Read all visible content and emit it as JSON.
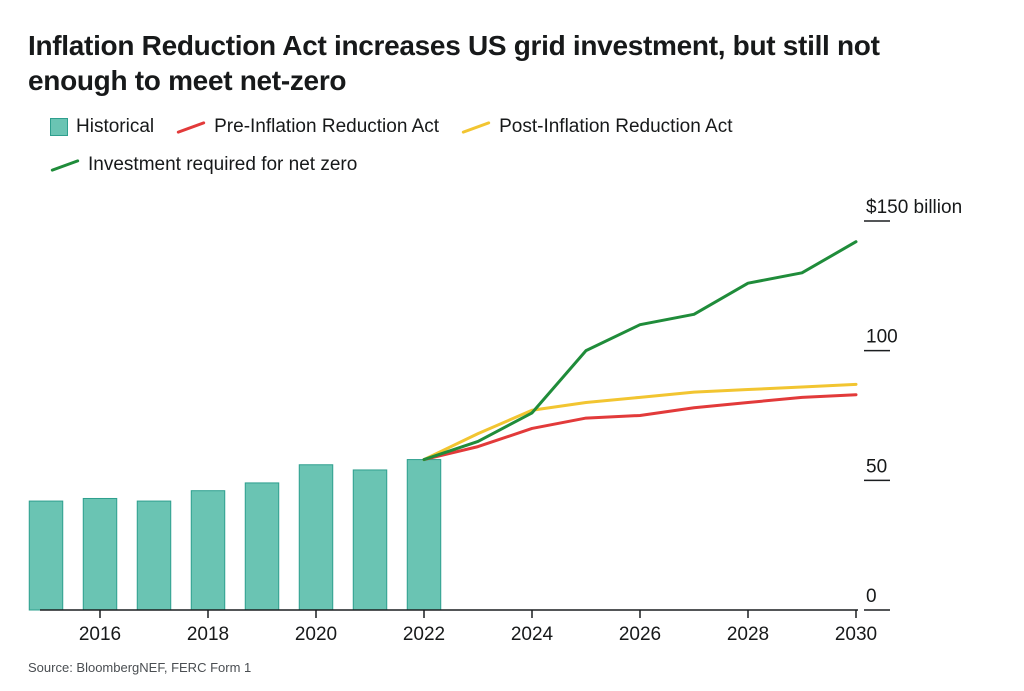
{
  "title": "Inflation Reduction Act increases US grid investment, but still not enough to meet net-zero",
  "source": "Source: BloombergNEF, FERC Form 1",
  "legend": {
    "historical": "Historical",
    "pre_ira": "Pre-Inflation Reduction Act",
    "post_ira": "Post-Inflation Reduction Act",
    "net_zero": "Investment required for net zero"
  },
  "chart": {
    "type": "bar+line",
    "background_color": "#ffffff",
    "text_color": "#17191a",
    "axis_color": "#1b1e20",
    "tick_font_size": 19,
    "y": {
      "unit_label": "$150 billion",
      "ticks": [
        0,
        50,
        100,
        150
      ],
      "tick_labels": [
        "0",
        "50",
        "100",
        "$150 billion"
      ],
      "min": 0,
      "max": 155
    },
    "x": {
      "years": [
        2015,
        2016,
        2017,
        2018,
        2019,
        2020,
        2021,
        2022,
        2023,
        2024,
        2025,
        2026,
        2027,
        2028,
        2029,
        2030
      ],
      "tick_years": [
        2016,
        2018,
        2020,
        2022,
        2024,
        2026,
        2028,
        2030
      ]
    },
    "bars": {
      "years": [
        2015,
        2016,
        2017,
        2018,
        2019,
        2020,
        2021,
        2022
      ],
      "values": [
        42,
        43,
        42,
        46,
        49,
        56,
        54,
        58
      ],
      "fill": "#6ac4b3",
      "stroke": "#2e9f8e",
      "width_ratio": 0.62
    },
    "lines": {
      "pre_ira": {
        "color": "#e23a3a",
        "width": 3,
        "years": [
          2022,
          2023,
          2024,
          2025,
          2026,
          2027,
          2028,
          2029,
          2030
        ],
        "values": [
          58,
          63,
          70,
          74,
          75,
          78,
          80,
          82,
          83
        ]
      },
      "post_ira": {
        "color": "#f2c531",
        "width": 3,
        "years": [
          2022,
          2023,
          2024,
          2025,
          2026,
          2027,
          2028,
          2029,
          2030
        ],
        "values": [
          58,
          68,
          77,
          80,
          82,
          84,
          85,
          86,
          87
        ]
      },
      "net_zero": {
        "color": "#1f8c3a",
        "width": 3,
        "years": [
          2022,
          2023,
          2024,
          2025,
          2026,
          2027,
          2028,
          2029,
          2030
        ],
        "values": [
          58,
          65,
          76,
          100,
          110,
          114,
          126,
          130,
          142
        ]
      }
    }
  }
}
